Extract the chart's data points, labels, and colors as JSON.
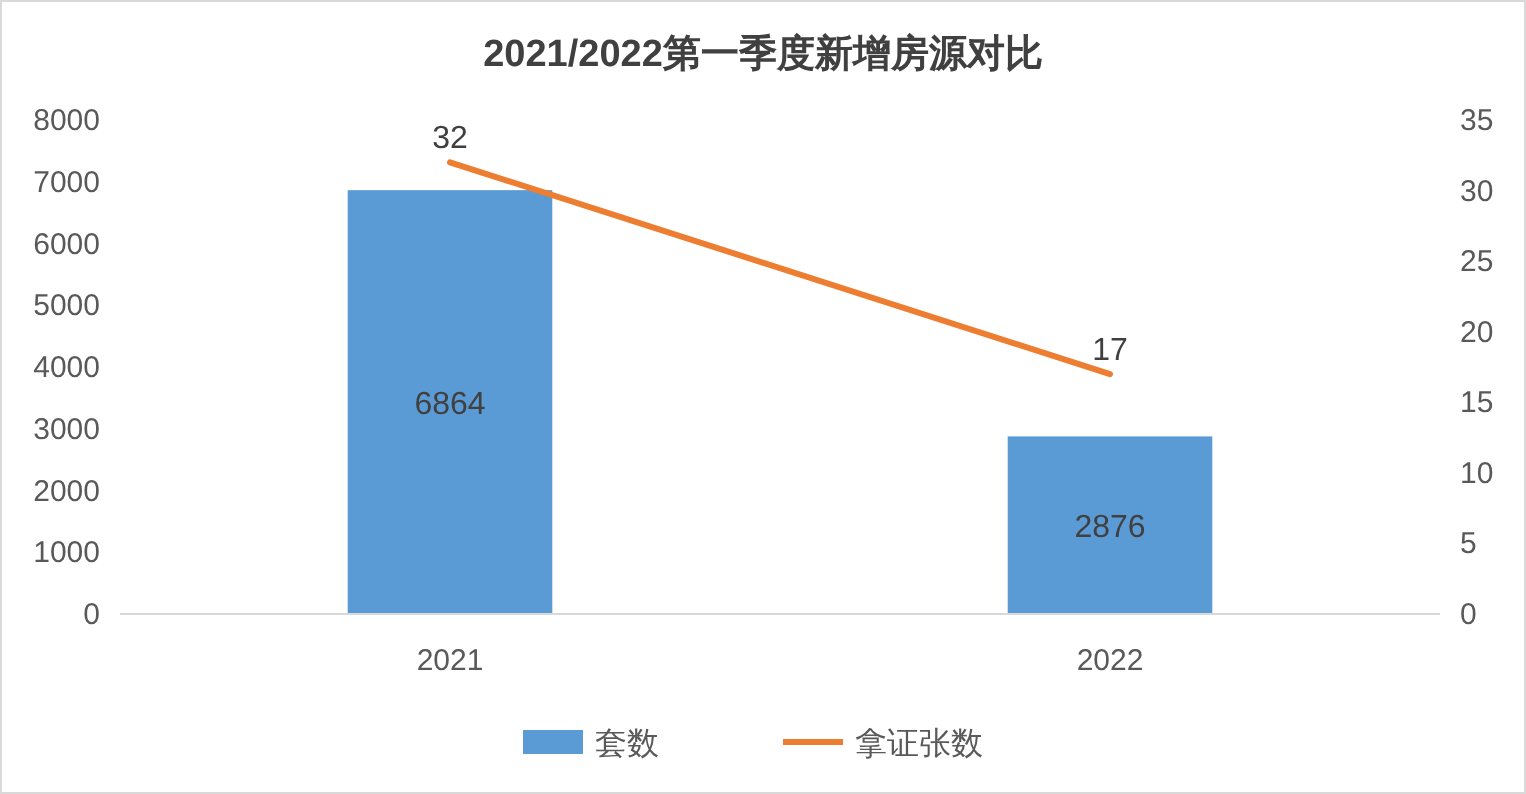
{
  "chart_data": {
    "type": "bar",
    "title": "2021/2022第一季度新增房源对比",
    "categories": [
      "2021",
      "2022"
    ],
    "series": [
      {
        "name": "套数",
        "color": "#5b9bd5",
        "values": [
          6864,
          2876
        ]
      },
      {
        "name": "拿证张数",
        "type": "line",
        "axis": "y2",
        "color": "#ed7d31",
        "values": [
          32,
          17
        ]
      }
    ],
    "ylim": [
      0,
      8000
    ],
    "yticks": [
      0,
      1000,
      2000,
      3000,
      4000,
      5000,
      6000,
      7000,
      8000
    ],
    "y2lim": [
      0,
      35
    ],
    "y2ticks": [
      0,
      5,
      10,
      15,
      20,
      25,
      30,
      35
    ],
    "data_labels": true,
    "legend": "bottom",
    "grid": false,
    "marker": "none"
  }
}
